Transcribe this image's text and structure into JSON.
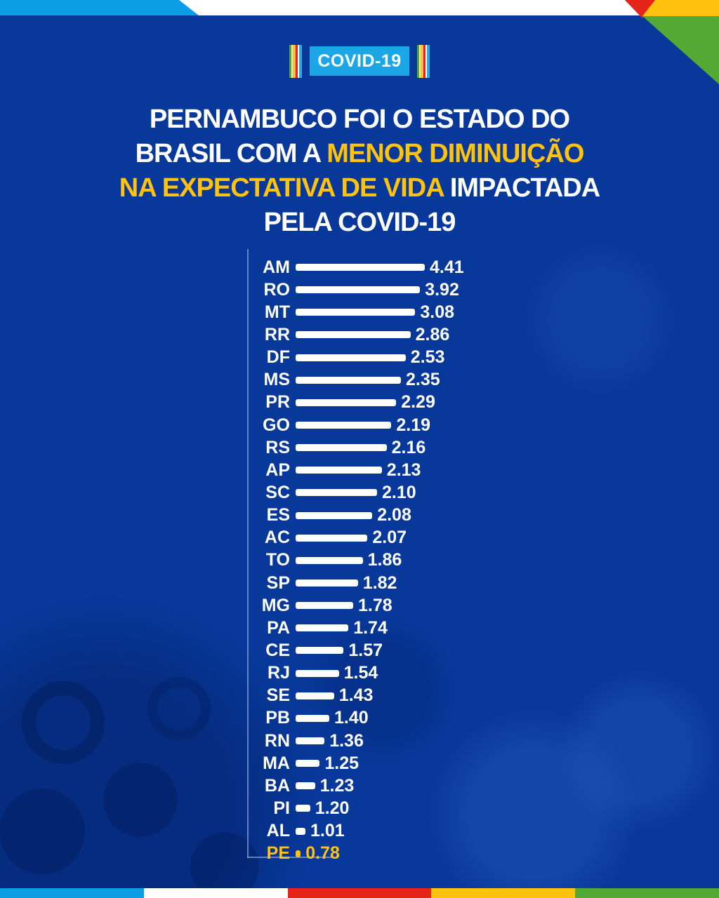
{
  "badge": {
    "label": "COVID-19"
  },
  "title": {
    "lines": [
      {
        "segments": [
          {
            "text": "PERNAMBUCO FOI O ESTADO DO",
            "highlight": false
          }
        ]
      },
      {
        "segments": [
          {
            "text": "BRASIL COM A ",
            "highlight": false
          },
          {
            "text": "MENOR DIMINUIÇÃO",
            "highlight": true
          }
        ]
      },
      {
        "segments": [
          {
            "text": "NA EXPECTATIVA DE VIDA",
            "highlight": true
          },
          {
            "text": " IMPACTADA",
            "highlight": false
          }
        ]
      },
      {
        "segments": [
          {
            "text": "PELA COVID-19",
            "highlight": false
          }
        ]
      }
    ]
  },
  "chart_data": {
    "type": "bar",
    "orientation": "horizontal",
    "title": "Pernambuco foi o estado do Brasil com a menor diminuição na expectativa de vida impactada pela COVID-19",
    "categories": [
      "AM",
      "RO",
      "MT",
      "RR",
      "DF",
      "MS",
      "PR",
      "GO",
      "RS",
      "AP",
      "SC",
      "ES",
      "AC",
      "TO",
      "SP",
      "MG",
      "PA",
      "CE",
      "RJ",
      "SE",
      "PB",
      "RN",
      "MA",
      "BA",
      "PI",
      "AL",
      "PE"
    ],
    "values": [
      4.41,
      3.92,
      3.08,
      2.86,
      2.53,
      2.35,
      2.29,
      2.19,
      2.16,
      2.13,
      2.1,
      2.08,
      2.07,
      1.86,
      1.82,
      1.78,
      1.74,
      1.57,
      1.54,
      1.43,
      1.4,
      1.36,
      1.25,
      1.23,
      1.2,
      1.01,
      0.78
    ],
    "value_labels": [
      "4.41",
      "3.92",
      "3.08",
      "2.86",
      "2.53",
      "2.35",
      "2.29",
      "2.19",
      "2.16",
      "2.13",
      "2.10",
      "2.08",
      "2.07",
      "1.86",
      "1.82",
      "1.78",
      "1.74",
      "1.57",
      "1.54",
      "1.43",
      "1.40",
      "1.36",
      "1.25",
      "1.23",
      "1.20",
      "1.01",
      "0.78"
    ],
    "highlighted_category": "PE",
    "xlim": [
      0,
      4.5
    ],
    "xlabel": "",
    "ylabel": "",
    "legend": "none",
    "gridlines": "off",
    "axis_style": "partial L-shaped axis line, no tick marks",
    "bar_length_scaling": "rank-based in source graphic (bar lengths decrease roughly linearly by rank, not proportional to values)",
    "bar_color": "#FFFFFF",
    "highlight_color": "#FFC20E"
  },
  "colors": {
    "background_blue": "#07389A",
    "light_blue_band": "#0D9DE4",
    "badge_blue": "#1BA7E6",
    "accent_yellow": "#FFC20E",
    "red": "#E62519",
    "green": "#54A934",
    "white": "#FFFFFF",
    "axis_line": "rgba(170,200,240,0.55)"
  }
}
